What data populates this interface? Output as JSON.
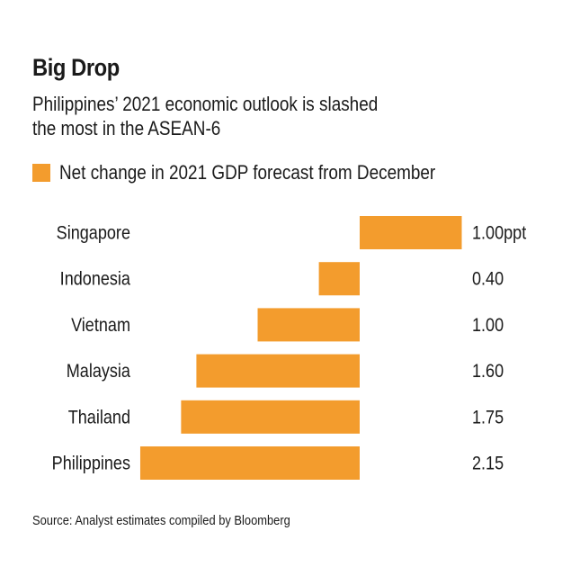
{
  "chart_data": {
    "type": "bar",
    "orientation": "horizontal",
    "title": "Big Drop",
    "subtitle_lines": [
      "Philippines’ 2021 economic outlook is slashed",
      "the most in the ASEAN-6"
    ],
    "legend": [
      "Net change in 2021 GDP forecast from December"
    ],
    "categories": [
      "Singapore",
      "Indonesia",
      "Vietnam",
      "Malaysia",
      "Thailand",
      "Philippines"
    ],
    "values": [
      1.0,
      -0.4,
      -1.0,
      -1.6,
      -1.75,
      -2.15
    ],
    "value_labels": [
      "1.00ppt",
      "0.40",
      "1.00",
      "1.60",
      "1.75",
      "2.15"
    ],
    "unit": "ppt",
    "xlim": [
      -2.15,
      1.0
    ],
    "xlabel": "",
    "ylabel": "",
    "grid": false,
    "source": "Source: Analyst estimates compiled by Bloomberg",
    "colors": {
      "bar": "#f39c2d",
      "text": "#1a1a1a"
    }
  }
}
